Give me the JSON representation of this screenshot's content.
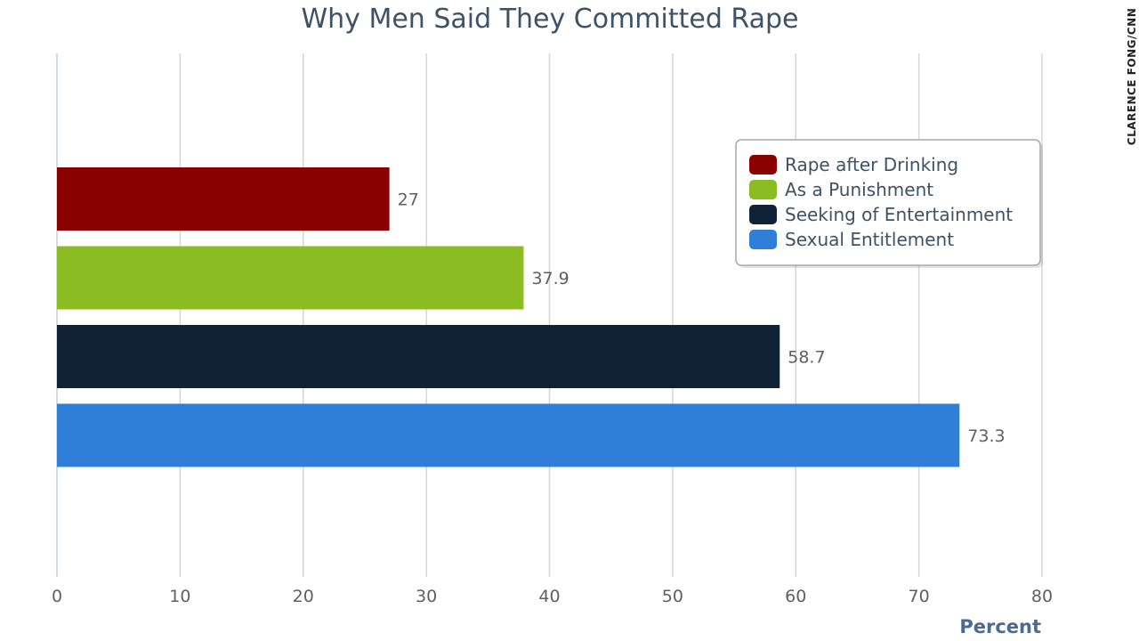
{
  "chart_data": {
    "type": "bar",
    "orientation": "horizontal",
    "title": "Why Men Said They Committed Rape",
    "xlabel": "Percent",
    "ylabel": "",
    "xlim": [
      0,
      80
    ],
    "xticks": [
      "0",
      "10",
      "20",
      "30",
      "40",
      "50",
      "60",
      "70",
      "80"
    ],
    "grid": true,
    "legend_position": "top-right",
    "series": [
      {
        "name": "Rape after Drinking",
        "value": 27,
        "label": "27",
        "color": "#8b0000"
      },
      {
        "name": "As a Punishment",
        "value": 37.9,
        "label": "37.9",
        "color": "#8bbc21"
      },
      {
        "name": "Seeking of Entertainment",
        "value": 58.7,
        "label": "58.7",
        "color": "#0f2236"
      },
      {
        "name": "Sexual Entitlement",
        "value": 73.3,
        "label": "73.3",
        "color": "#2f7ed8"
      }
    ]
  },
  "credit": "CLARENCE FONG/CNN"
}
